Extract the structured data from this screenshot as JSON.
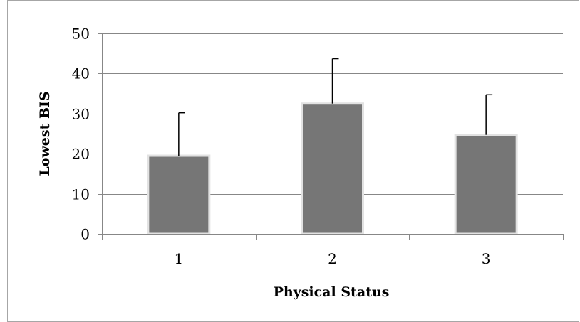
{
  "chart_data": {
    "type": "bar",
    "categories": [
      "1",
      "2",
      "3"
    ],
    "values": [
      19.5,
      32.5,
      24.7
    ],
    "error_upper": [
      30.2,
      43.7,
      34.7
    ],
    "title": "",
    "xlabel": "Physical Status",
    "ylabel": "Lowest BIS",
    "ylim": [
      0,
      50
    ],
    "yticks": [
      0,
      10,
      20,
      30,
      40,
      50
    ],
    "grid": true,
    "legend": "none"
  },
  "colors": {
    "bar": "#767676",
    "bar_edge": "#e2e2e2",
    "gridline": "#878787",
    "axis": "#878787",
    "error_bar": "#000000",
    "frame": "#a6a6a6"
  }
}
